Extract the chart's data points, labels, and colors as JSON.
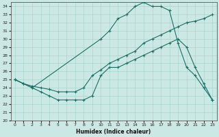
{
  "xlabel": "Humidex (Indice chaleur)",
  "bg_color": "#cce8e4",
  "line_color": "#1a6e66",
  "grid_color": "#aad4ce",
  "ylim": [
    20,
    34.5
  ],
  "xlim": [
    -0.5,
    23.5
  ],
  "yticks": [
    20,
    21,
    22,
    23,
    24,
    25,
    26,
    27,
    28,
    29,
    30,
    31,
    32,
    33,
    34
  ],
  "xticks": [
    0,
    1,
    2,
    3,
    4,
    5,
    6,
    7,
    8,
    9,
    10,
    11,
    12,
    13,
    14,
    15,
    16,
    17,
    18,
    19,
    20,
    21,
    22,
    23
  ],
  "line1_x": [
    0,
    1,
    2,
    3,
    4,
    5,
    6,
    7,
    8,
    9,
    10,
    11,
    12,
    13,
    14,
    15,
    16,
    17,
    18,
    19,
    20,
    21,
    22,
    23
  ],
  "line1_y": [
    25.0,
    24.5,
    24.0,
    23.5,
    23.0,
    22.5,
    22.5,
    22.5,
    22.5,
    23.0,
    25.5,
    26.5,
    26.5,
    27.0,
    27.5,
    28.0,
    28.5,
    29.0,
    29.5,
    30.0,
    29.0,
    26.5,
    24.5,
    22.5
  ],
  "line2_x": [
    0,
    1,
    2,
    3,
    4,
    5,
    6,
    7,
    8,
    9,
    10,
    11,
    12,
    13,
    14,
    15,
    16,
    17,
    18,
    19,
    20,
    21,
    22,
    23
  ],
  "line2_y": [
    25.0,
    24.5,
    24.2,
    24.0,
    23.8,
    23.5,
    23.5,
    23.5,
    24.0,
    25.5,
    26.2,
    27.0,
    27.5,
    28.0,
    28.5,
    29.5,
    30.0,
    30.5,
    31.0,
    31.5,
    32.0,
    32.2,
    32.5,
    33.0
  ],
  "line3_x": [
    0,
    1,
    2,
    10,
    11,
    12,
    13,
    14,
    15,
    16,
    17,
    18,
    19,
    20,
    21,
    22,
    23
  ],
  "line3_y": [
    25.0,
    24.5,
    24.0,
    30.0,
    31.0,
    32.5,
    33.0,
    34.0,
    34.5,
    34.0,
    34.0,
    33.5,
    29.5,
    26.5,
    25.5,
    24.0,
    22.5
  ]
}
